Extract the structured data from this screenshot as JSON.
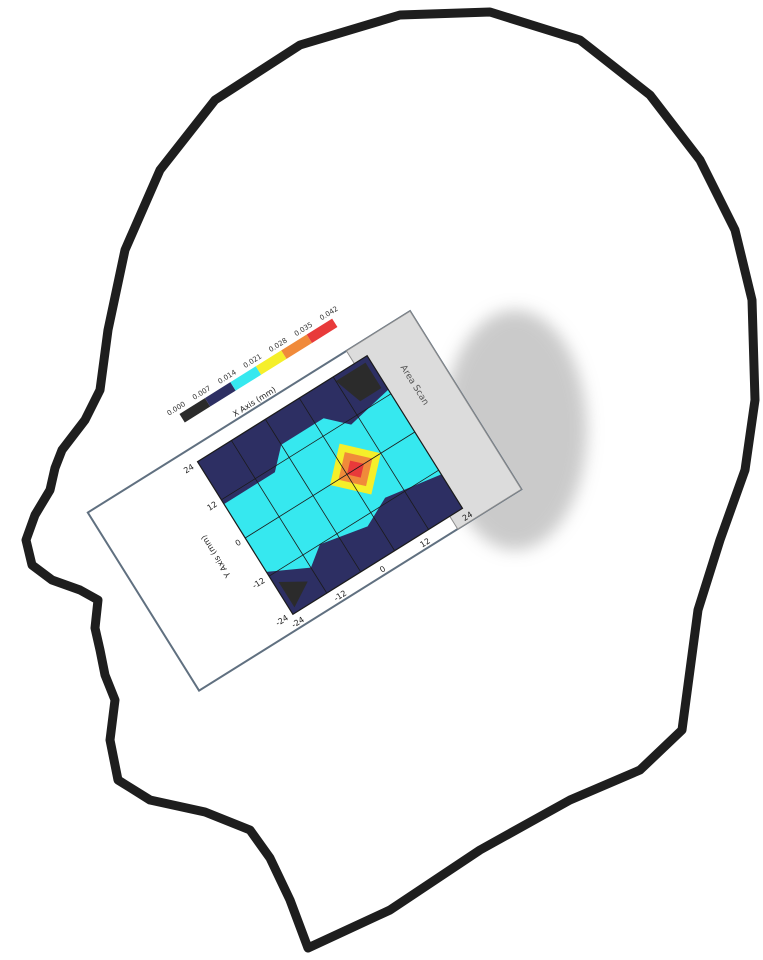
{
  "figure": {
    "scan_label": "Area Scan",
    "x_axis_label": "X Axis (mm)",
    "y_axis_label": "Y Axis (mm)",
    "colors": {
      "head_outline": "#1e1e1e",
      "phone_body": "#d7d7d7",
      "phone_frame": "#607080",
      "cyan": "#36e8ef",
      "navy": "#2d2f63",
      "dark": "#2b2b2b",
      "yellow": "#f5ef2a",
      "orange": "#f08a3a",
      "red": "#e83a3a"
    },
    "colorbar": {
      "labels": [
        "0.000",
        "0.007",
        "0.014",
        "0.021",
        "0.028",
        "0.035",
        "0.042"
      ]
    },
    "x_ticks": [
      "-24",
      "-12",
      "0",
      "12",
      "24"
    ],
    "y_ticks": [
      "-24",
      "-12",
      "0",
      "12",
      "24"
    ]
  }
}
